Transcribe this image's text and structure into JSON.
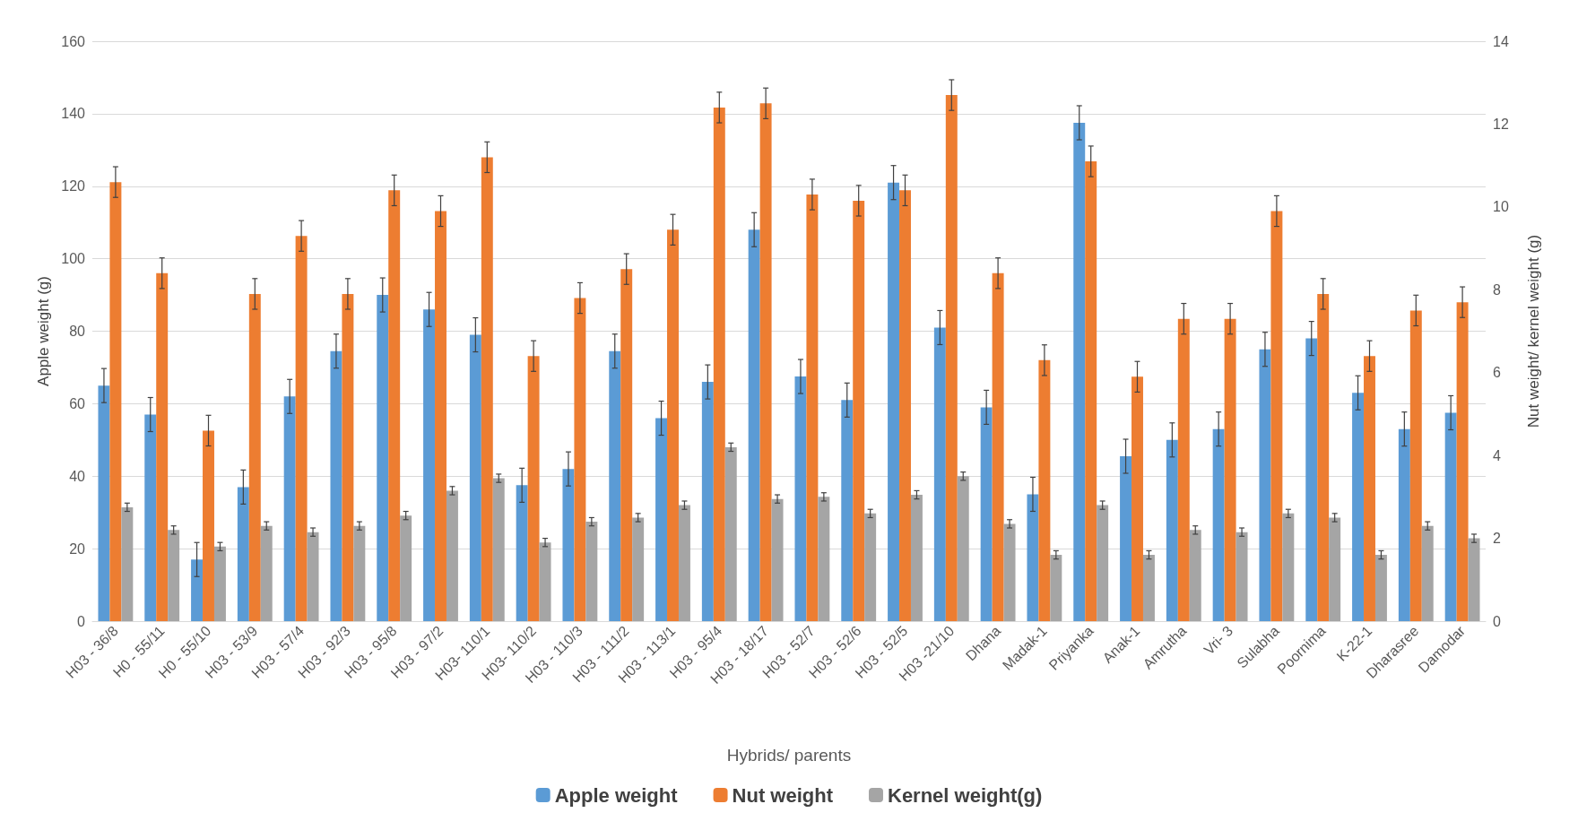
{
  "chart_data": {
    "type": "bar",
    "xlabel": "Hybrids/ parents",
    "ylabel": "Apple weight (g)",
    "y2label": "Nut weight/ kernel weight (g)",
    "categories": [
      "H03 - 36/8",
      "H0 - 55/11",
      "H0 - 55/10",
      "H03 - 53/9",
      "H03 - 57/4",
      "H03 - 92/3",
      "H03 - 95/8",
      "H03 - 97/2",
      "H03- 110/1",
      "H03- 110/2",
      "H03 - 110/3",
      "H03 - 111/2",
      "H03 - 113/1",
      "H03 - 95/4",
      "H03 - 18/17",
      "H03 - 52/7",
      "H03 - 52/6",
      "H03 - 52/5",
      "H03 -21/10",
      "Dhana",
      "Madak-1",
      "Priyanka",
      "Anak-1",
      "Amrutha",
      "Vri- 3",
      "Sulabha",
      "Poornima",
      "K-22-1",
      "Dharasree",
      "Damodar"
    ],
    "series": [
      {
        "name": "Apple weight",
        "color": "#5b9bd5",
        "values": [
          65,
          57,
          17,
          37,
          62,
          74.5,
          90,
          86,
          79,
          37.5,
          42,
          74.5,
          56,
          66,
          108,
          67.5,
          61,
          121,
          81,
          59,
          35,
          137.5,
          45.5,
          50,
          53,
          75,
          78,
          63,
          53,
          57.5
        ],
        "errors": [
          4.7,
          4.7,
          4.7,
          4.7,
          4.7,
          4.7,
          4.7,
          4.7,
          4.7,
          4.7,
          4.7,
          4.7,
          4.7,
          4.7,
          4.7,
          4.7,
          4.7,
          4.7,
          4.7,
          4.7,
          4.7,
          4.7,
          4.7,
          4.7,
          4.7,
          4.7,
          4.7,
          4.7,
          4.7,
          4.7
        ]
      },
      {
        "name": "Nut weight",
        "color": "#ed7d31",
        "axis": "y2",
        "values": [
          10.6,
          8.4,
          4.6,
          7.9,
          9.3,
          7.9,
          10.4,
          9.9,
          11.2,
          6.4,
          7.8,
          8.5,
          9.45,
          12.4,
          12.5,
          10.3,
          10.15,
          10.4,
          12.7,
          8.4,
          6.3,
          11.1,
          5.9,
          7.3,
          7.3,
          9.9,
          7.9,
          6.4,
          7.5,
          7.7
        ],
        "errors": [
          0.37,
          0.37,
          0.37,
          0.37,
          0.37,
          0.37,
          0.37,
          0.37,
          0.37,
          0.37,
          0.37,
          0.37,
          0.37,
          0.37,
          0.37,
          0.37,
          0.37,
          0.37,
          0.37,
          0.37,
          0.37,
          0.37,
          0.37,
          0.37,
          0.37,
          0.37,
          0.37,
          0.37,
          0.37,
          0.37
        ]
      },
      {
        "name": "Kernel weight(g)",
        "color": "#a5a5a5",
        "axis": "y2",
        "values": [
          2.75,
          2.2,
          1.8,
          2.3,
          2.15,
          2.3,
          2.55,
          3.15,
          3.45,
          1.9,
          2.4,
          2.5,
          2.8,
          4.2,
          2.95,
          3.0,
          2.6,
          3.05,
          3.5,
          2.35,
          1.6,
          2.8,
          1.6,
          2.2,
          2.15,
          2.6,
          2.5,
          1.6,
          2.3,
          2.0
        ],
        "errors": [
          0.1,
          0.1,
          0.1,
          0.1,
          0.1,
          0.1,
          0.1,
          0.1,
          0.1,
          0.1,
          0.1,
          0.1,
          0.1,
          0.1,
          0.1,
          0.1,
          0.1,
          0.1,
          0.1,
          0.1,
          0.1,
          0.1,
          0.1,
          0.1,
          0.1,
          0.1,
          0.1,
          0.1,
          0.1,
          0.1
        ]
      }
    ],
    "ylim": [
      0,
      160
    ],
    "yticks": [
      0,
      20,
      40,
      60,
      80,
      100,
      120,
      140,
      160
    ],
    "y2lim": [
      0,
      14
    ],
    "y2ticks": [
      0,
      2,
      4,
      6,
      8,
      10,
      12,
      14
    ],
    "grid": "y",
    "legend": "bottom"
  }
}
